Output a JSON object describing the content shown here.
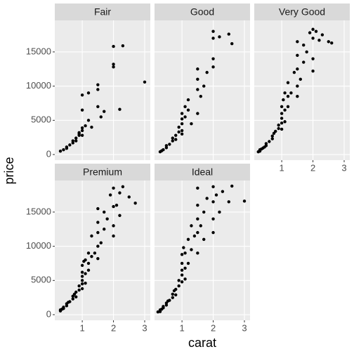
{
  "chart_data": {
    "type": "scatter",
    "xlabel": "carat",
    "ylabel": "price",
    "color": "#000000",
    "xlim": [
      0.12,
      3.18
    ],
    "ylim": [
      -820,
      19610
    ],
    "xticks": [
      1,
      2,
      3
    ],
    "yticks": [
      0,
      5000,
      10000,
      15000
    ],
    "grid": true,
    "panels": [
      {
        "title": "Fair",
        "x": [
          0.3,
          0.4,
          0.5,
          0.5,
          0.6,
          0.7,
          0.7,
          0.8,
          0.9,
          0.9,
          1.0,
          1.0,
          1.0,
          1.1,
          1.2,
          1.0,
          1.0,
          1.2,
          1.3,
          1.5,
          1.5,
          1.5,
          1.6,
          1.7,
          2.0,
          2.0,
          2.0,
          2.2,
          2.3,
          3.0,
          0.8,
          0.9
        ],
        "y": [
          500,
          700,
          900,
          1100,
          1400,
          1700,
          2000,
          2400,
          2800,
          3200,
          3500,
          3900,
          2800,
          4200,
          5000,
          6500,
          8700,
          9000,
          4000,
          7000,
          9500,
          10200,
          5500,
          6300,
          12800,
          13200,
          15800,
          6600,
          15900,
          10600,
          2000,
          3000
        ]
      },
      {
        "title": "Good",
        "x": [
          0.3,
          0.35,
          0.4,
          0.5,
          0.5,
          0.6,
          0.7,
          0.7,
          0.8,
          0.9,
          0.9,
          1.0,
          1.0,
          1.0,
          1.1,
          1.1,
          1.2,
          1.2,
          1.5,
          1.5,
          1.5,
          1.6,
          1.0,
          0.8,
          1.7,
          1.8,
          2.0,
          2.0,
          2.0,
          2.2,
          2.5,
          2.6,
          2.0,
          1.5,
          1.3,
          1.0
        ],
        "y": [
          400,
          550,
          700,
          1000,
          1300,
          1500,
          2000,
          2400,
          2800,
          3300,
          4000,
          4500,
          5200,
          6000,
          5500,
          7000,
          8000,
          6500,
          9500,
          11000,
          12500,
          8500,
          3500,
          2200,
          10000,
          12000,
          14000,
          17000,
          18000,
          17200,
          17600,
          16200,
          12800,
          6000,
          4500,
          3000
        ]
      },
      {
        "title": "Very Good",
        "x": [
          0.25,
          0.3,
          0.3,
          0.35,
          0.4,
          0.45,
          0.5,
          0.5,
          0.6,
          0.7,
          0.7,
          0.75,
          0.8,
          0.9,
          0.9,
          1.0,
          1.0,
          1.0,
          1.0,
          1.05,
          1.1,
          1.1,
          1.2,
          1.2,
          1.2,
          1.3,
          1.4,
          1.5,
          1.5,
          1.5,
          1.5,
          1.6,
          1.7,
          1.7,
          1.8,
          1.9,
          2.0,
          2.0,
          2.0,
          2.1,
          2.2,
          2.3,
          2.5,
          2.6,
          1.1,
          1.0,
          1.5,
          2.0
        ],
        "y": [
          400,
          500,
          700,
          800,
          950,
          1100,
          1300,
          1600,
          1900,
          2300,
          2700,
          3100,
          3400,
          3800,
          4300,
          4600,
          5300,
          6000,
          7000,
          8000,
          6500,
          9000,
          7000,
          8500,
          10500,
          9000,
          12000,
          10000,
          12500,
          14500,
          16500,
          11000,
          13500,
          16000,
          15000,
          17800,
          14000,
          17000,
          18300,
          18000,
          16700,
          17500,
          16500,
          16300,
          4800,
          3700,
          8500,
          12200
        ]
      },
      {
        "title": "Premium",
        "x": [
          0.3,
          0.3,
          0.35,
          0.4,
          0.4,
          0.5,
          0.5,
          0.55,
          0.6,
          0.7,
          0.7,
          0.75,
          0.8,
          0.9,
          0.9,
          1.0,
          1.0,
          1.0,
          1.0,
          1.0,
          1.05,
          1.1,
          1.1,
          1.2,
          1.2,
          1.2,
          1.3,
          1.3,
          1.4,
          1.5,
          1.5,
          1.5,
          1.5,
          1.6,
          1.7,
          1.7,
          1.8,
          1.9,
          2.0,
          2.0,
          2.0,
          2.1,
          2.2,
          2.3,
          2.5,
          2.7,
          1.1,
          0.8,
          1.0,
          1.5,
          2.0,
          2.2
        ],
        "y": [
          550,
          700,
          800,
          900,
          1100,
          1300,
          1600,
          1800,
          1900,
          2300,
          2700,
          3000,
          3300,
          3600,
          4200,
          4500,
          5000,
          5600,
          6200,
          7200,
          7800,
          6000,
          8000,
          6500,
          7500,
          9000,
          8500,
          11500,
          9000,
          10000,
          12000,
          13500,
          15500,
          10500,
          12500,
          15000,
          14000,
          17500,
          13000,
          15800,
          18500,
          16000,
          17800,
          18700,
          17200,
          16300,
          4600,
          2600,
          3800,
          8200,
          11500,
          14500
        ]
      },
      {
        "title": "Ideal",
        "x": [
          0.23,
          0.3,
          0.3,
          0.35,
          0.4,
          0.4,
          0.5,
          0.5,
          0.55,
          0.6,
          0.7,
          0.7,
          0.75,
          0.8,
          0.9,
          0.9,
          1.0,
          1.0,
          1.0,
          1.0,
          1.0,
          1.05,
          1.1,
          1.1,
          1.2,
          1.2,
          1.3,
          1.3,
          1.4,
          1.5,
          1.5,
          1.5,
          1.5,
          1.6,
          1.7,
          1.8,
          2.0,
          2.0,
          2.0,
          2.1,
          2.2,
          2.3,
          2.5,
          2.6,
          3.0,
          0.8,
          1.1,
          1.5,
          1.7,
          2.0
        ],
        "y": [
          400,
          450,
          700,
          800,
          1000,
          1200,
          1400,
          1700,
          2000,
          2100,
          2500,
          3000,
          3500,
          3700,
          4200,
          5000,
          4800,
          5800,
          6500,
          7500,
          8800,
          9800,
          6800,
          9000,
          7500,
          11000,
          9500,
          13000,
          11500,
          12000,
          14000,
          16000,
          18500,
          13000,
          15000,
          17000,
          14000,
          16500,
          18700,
          17500,
          15000,
          18000,
          16500,
          18800,
          16600,
          2900,
          5200,
          9000,
          11000,
          12000
        ]
      }
    ]
  }
}
